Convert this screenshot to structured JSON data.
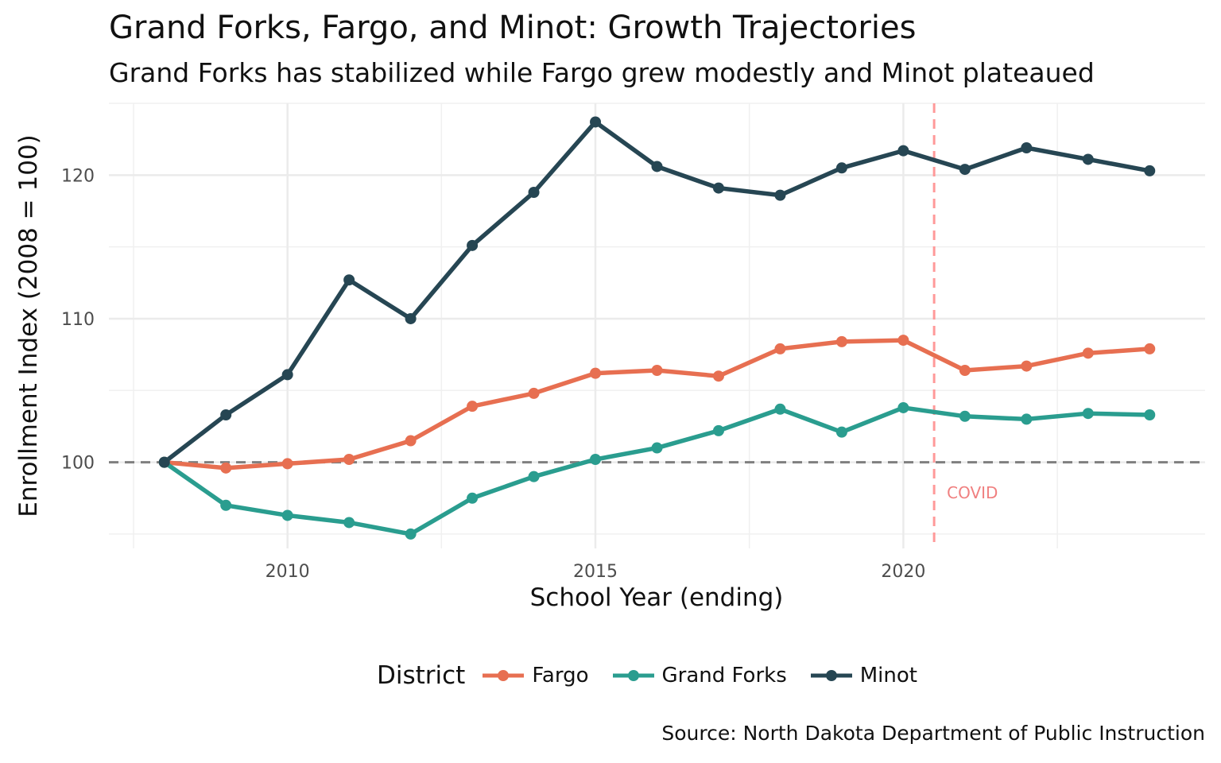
{
  "chart_data": {
    "type": "line",
    "title": "Grand Forks, Fargo, and Minot: Growth Trajectories",
    "subtitle": "Grand Forks has stabilized while Fargo grew modestly and Minot plateaued",
    "xlabel": "School Year (ending)",
    "ylabel": "Enrollment Index (2008 = 100)",
    "caption": "Source: North Dakota Department of Public Instruction",
    "x": [
      2008,
      2009,
      2010,
      2011,
      2012,
      2013,
      2014,
      2015,
      2016,
      2017,
      2018,
      2019,
      2020,
      2021,
      2022,
      2023,
      2024
    ],
    "xlim": [
      2007.1,
      2024.9
    ],
    "ylim": [
      94.0,
      125.0
    ],
    "x_ticks": [
      2010,
      2015,
      2020
    ],
    "x_tick_labels": [
      "2010",
      "2015",
      "2020"
    ],
    "y_ticks": [
      100,
      110,
      120
    ],
    "y_tick_labels": [
      "100",
      "110",
      "120"
    ],
    "reference_line": {
      "y": 100,
      "style": "dashed",
      "color": "#7f7f7f"
    },
    "annotation": {
      "x": 2020.5,
      "label": "COVID",
      "style": "dashed",
      "color": "#ff9999"
    },
    "legend": {
      "title": "District",
      "position": "bottom"
    },
    "series": [
      {
        "name": "Fargo",
        "color": "#e76f51",
        "values": [
          100.0,
          99.6,
          99.9,
          100.2,
          101.5,
          103.9,
          104.8,
          106.2,
          106.4,
          106.0,
          107.9,
          108.4,
          108.5,
          106.4,
          106.7,
          107.6,
          107.9
        ]
      },
      {
        "name": "Grand Forks",
        "color": "#2a9d8f",
        "values": [
          100.0,
          97.0,
          96.3,
          95.8,
          95.0,
          97.5,
          99.0,
          100.2,
          101.0,
          102.2,
          103.7,
          102.1,
          103.8,
          103.2,
          103.0,
          103.4,
          103.3
        ]
      },
      {
        "name": "Minot",
        "color": "#264653",
        "values": [
          100.0,
          103.3,
          106.1,
          112.7,
          110.0,
          115.1,
          118.8,
          123.7,
          120.6,
          119.1,
          118.6,
          120.5,
          121.7,
          120.4,
          121.9,
          121.1,
          120.3
        ]
      }
    ]
  }
}
